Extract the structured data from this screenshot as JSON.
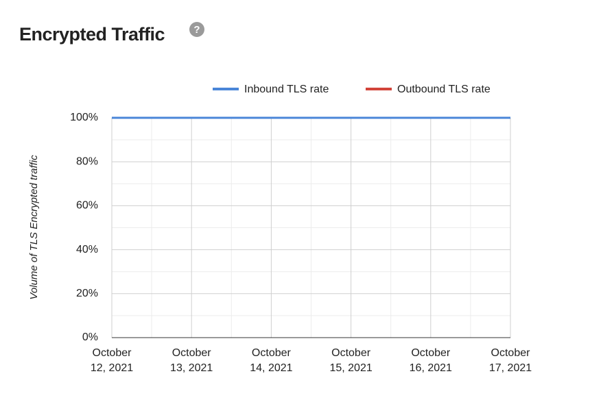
{
  "chart_data": {
    "type": "line",
    "title": "Encrypted Traffic",
    "y_label": "Volume of TLS Encrypted traffic",
    "categories": [
      "October 12, 2021",
      "October 13, 2021",
      "October 14, 2021",
      "October 15, 2021",
      "October 16, 2021",
      "October 17, 2021"
    ],
    "series": [
      {
        "name": "Inbound TLS rate",
        "color": "#4a86d8",
        "values": [
          100,
          100,
          100,
          100,
          100,
          100
        ]
      },
      {
        "name": "Outbound TLS rate",
        "color": "#d2443a",
        "values": [
          100,
          100,
          100,
          100,
          100,
          100
        ]
      }
    ],
    "ylim": [
      0,
      100
    ],
    "yticks": [
      {
        "value": 0,
        "label": "0%"
      },
      {
        "value": 20,
        "label": "20%"
      },
      {
        "value": 40,
        "label": "40%"
      },
      {
        "value": 60,
        "label": "60%"
      },
      {
        "value": 80,
        "label": "80%"
      },
      {
        "value": 100,
        "label": "100%"
      }
    ],
    "grid": true,
    "legend": "top"
  }
}
